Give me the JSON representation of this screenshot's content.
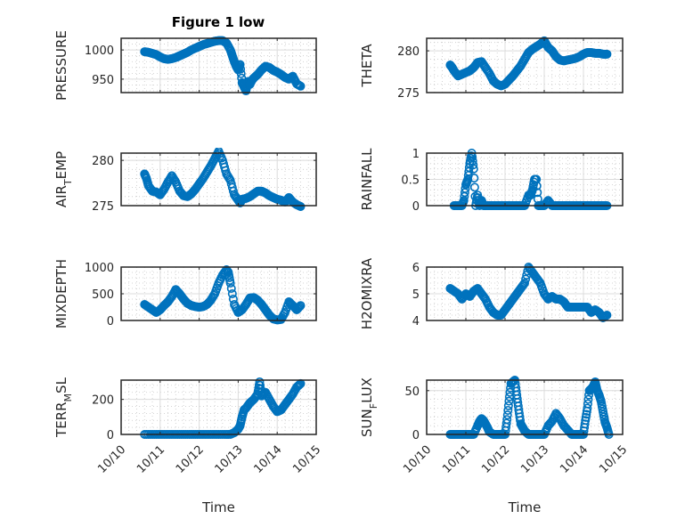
{
  "figure": {
    "title": "Figure 1 low"
  },
  "colors": {
    "marker": "#0072BD",
    "axis": "#262626",
    "grid_major": "#dcdcdc",
    "grid_minor": "#c8c8c8",
    "background": "#ffffff"
  },
  "chart_data": [
    {
      "type": "scatter",
      "name": "pressure",
      "title": "Figure 1 low",
      "xlabel": "",
      "ylabel": "PRESSURE",
      "xlim": [
        0,
        5
      ],
      "xticks": [
        0,
        1,
        2,
        3,
        4,
        5
      ],
      "xtick_labels": [],
      "ylim": [
        927,
        1020
      ],
      "yticks": [
        950,
        1000
      ],
      "ytick_labels": [
        "950",
        "1000"
      ],
      "grid": true,
      "x": [
        0.6,
        0.7,
        0.8,
        0.9,
        1.0,
        1.1,
        1.2,
        1.3,
        1.4,
        1.5,
        1.6,
        1.7,
        1.8,
        1.9,
        2.0,
        2.1,
        2.2,
        2.3,
        2.4,
        2.5,
        2.6,
        2.7,
        2.8,
        2.85,
        2.9,
        2.95,
        3.0,
        3.05,
        3.1,
        3.15,
        3.2,
        3.25,
        3.3,
        3.35,
        3.4,
        3.5,
        3.6,
        3.7,
        3.8,
        3.9,
        4.0,
        4.1,
        4.2,
        4.3,
        4.4,
        4.5,
        4.6
      ],
      "y": [
        997,
        996,
        994,
        992,
        988,
        985,
        984,
        985,
        987,
        990,
        993,
        996,
        1000,
        1003,
        1006,
        1009,
        1011,
        1013,
        1015,
        1016,
        1016,
        1012,
        1000,
        990,
        980,
        972,
        966,
        975,
        944,
        937,
        930,
        946,
        941,
        948,
        952,
        958,
        966,
        972,
        970,
        965,
        962,
        958,
        953,
        950,
        955,
        942,
        938
      ]
    },
    {
      "type": "scatter",
      "name": "theta",
      "xlabel": "",
      "ylabel": "THETA",
      "xlim": [
        0,
        5
      ],
      "xticks": [
        0,
        1,
        2,
        3,
        4,
        5
      ],
      "xtick_labels": [],
      "ylim": [
        275,
        281.5
      ],
      "yticks": [
        275,
        280
      ],
      "ytick_labels": [
        "275",
        "280"
      ],
      "grid": true,
      "x": [
        0.6,
        0.65,
        0.7,
        0.8,
        0.9,
        1.0,
        1.1,
        1.2,
        1.3,
        1.4,
        1.5,
        1.6,
        1.7,
        1.8,
        1.9,
        2.0,
        2.1,
        2.2,
        2.3,
        2.4,
        2.5,
        2.6,
        2.7,
        2.8,
        2.9,
        3.0,
        3.1,
        3.2,
        3.3,
        3.4,
        3.5,
        3.6,
        3.7,
        3.8,
        3.9,
        4.0,
        4.1,
        4.2,
        4.3,
        4.4,
        4.5,
        4.6
      ],
      "y": [
        278.3,
        278.0,
        277.6,
        277.0,
        277.2,
        277.4,
        277.6,
        278.0,
        278.6,
        278.7,
        278.0,
        277.3,
        276.4,
        276.0,
        275.8,
        276.0,
        276.5,
        277.0,
        277.6,
        278.2,
        279.0,
        279.8,
        280.2,
        280.5,
        280.8,
        281.2,
        280.4,
        280.0,
        279.3,
        278.9,
        278.8,
        278.9,
        279.0,
        279.1,
        279.3,
        279.6,
        279.8,
        279.8,
        279.7,
        279.7,
        279.6,
        279.6
      ]
    },
    {
      "type": "scatter",
      "name": "air_temp",
      "xlabel": "",
      "ylabel": "AIR_TEMP",
      "ylabel_display": [
        "AIR",
        "T",
        "EMP"
      ],
      "xlim": [
        0,
        5
      ],
      "xticks": [
        0,
        1,
        2,
        3,
        4,
        5
      ],
      "xtick_labels": [],
      "ylim": [
        275,
        280.8
      ],
      "yticks": [
        275,
        280
      ],
      "ytick_labels": [
        "275",
        "280"
      ],
      "grid": true,
      "x": [
        0.6,
        0.65,
        0.7,
        0.8,
        0.9,
        1.0,
        1.1,
        1.2,
        1.3,
        1.4,
        1.5,
        1.6,
        1.7,
        1.8,
        1.9,
        2.0,
        2.1,
        2.2,
        2.3,
        2.4,
        2.5,
        2.6,
        2.7,
        2.8,
        2.9,
        3.0,
        3.05,
        3.1,
        3.2,
        3.3,
        3.4,
        3.5,
        3.6,
        3.7,
        3.8,
        3.9,
        4.0,
        4.1,
        4.2,
        4.3,
        4.4,
        4.5,
        4.6
      ],
      "y": [
        278.5,
        278.0,
        277.2,
        276.6,
        276.5,
        276.2,
        276.8,
        277.6,
        278.3,
        277.6,
        276.6,
        276.1,
        276.0,
        276.3,
        276.8,
        277.4,
        278.0,
        278.7,
        279.4,
        280.2,
        281.0,
        280.0,
        278.5,
        277.8,
        276.2,
        275.6,
        275.3,
        275.7,
        275.8,
        276.0,
        276.3,
        276.6,
        276.6,
        276.4,
        276.1,
        275.9,
        275.7,
        275.6,
        275.4,
        275.9,
        275.4,
        275.1,
        274.9
      ]
    },
    {
      "type": "scatter",
      "name": "rainfall",
      "xlabel": "",
      "ylabel": "RAINFALL",
      "xlim": [
        0,
        5
      ],
      "xticks": [
        0,
        1,
        2,
        3,
        4,
        5
      ],
      "xtick_labels": [],
      "ylim": [
        0,
        1
      ],
      "yticks": [
        0,
        0.5,
        1
      ],
      "ytick_labels": [
        "0",
        "0.5",
        "1"
      ],
      "grid": true,
      "x": [
        0.7,
        0.8,
        0.9,
        0.95,
        1.0,
        1.05,
        1.1,
        1.15,
        1.2,
        1.25,
        1.3,
        1.35,
        1.4,
        1.45,
        1.5,
        1.6,
        1.7,
        1.8,
        1.9,
        2.0,
        2.1,
        2.2,
        2.3,
        2.4,
        2.5,
        2.6,
        2.65,
        2.7,
        2.75,
        2.8,
        2.85,
        2.9,
        3.0,
        3.1,
        3.2,
        3.3,
        3.4,
        3.5,
        3.6,
        3.7,
        3.8,
        3.9,
        4.0,
        4.1,
        4.2,
        4.3,
        4.4,
        4.5,
        4.6
      ],
      "y": [
        0,
        0,
        0,
        0.1,
        0.4,
        0.5,
        0.8,
        1.0,
        0.7,
        0.0,
        0.2,
        0.0,
        0.1,
        0,
        0,
        0,
        0,
        0,
        0,
        0,
        0,
        0,
        0,
        0,
        0,
        0.2,
        0.2,
        0.3,
        0.5,
        0.5,
        0,
        0,
        0,
        0.1,
        0,
        0,
        0,
        0,
        0,
        0,
        0,
        0,
        0,
        0,
        0,
        0,
        0,
        0,
        0
      ]
    },
    {
      "type": "scatter",
      "name": "mixdepth",
      "xlabel": "",
      "ylabel": "MIXDEPTH",
      "xlim": [
        0,
        5
      ],
      "xticks": [
        0,
        1,
        2,
        3,
        4,
        5
      ],
      "xtick_labels": [],
      "ylim": [
        0,
        1000
      ],
      "yticks": [
        0,
        500,
        1000
      ],
      "ytick_labels": [
        "0",
        "500",
        "1000"
      ],
      "grid": true,
      "x": [
        0.6,
        0.7,
        0.8,
        0.9,
        1.0,
        1.1,
        1.2,
        1.3,
        1.4,
        1.5,
        1.6,
        1.7,
        1.8,
        1.9,
        2.0,
        2.1,
        2.2,
        2.3,
        2.4,
        2.5,
        2.6,
        2.7,
        2.75,
        2.8,
        2.9,
        3.0,
        3.1,
        3.2,
        3.3,
        3.4,
        3.5,
        3.6,
        3.7,
        3.8,
        3.9,
        4.0,
        4.1,
        4.2,
        4.3,
        4.4,
        4.5,
        4.6
      ],
      "y": [
        300,
        250,
        200,
        150,
        200,
        280,
        350,
        450,
        580,
        500,
        400,
        320,
        280,
        260,
        250,
        260,
        300,
        380,
        500,
        700,
        850,
        950,
        900,
        700,
        300,
        150,
        200,
        300,
        420,
        430,
        380,
        300,
        200,
        100,
        30,
        10,
        20,
        150,
        350,
        280,
        200,
        280
      ]
    },
    {
      "type": "scatter",
      "name": "h2omixra",
      "xlabel": "",
      "ylabel": "H2OMIXRA",
      "xlim": [
        0,
        5
      ],
      "xticks": [
        0,
        1,
        2,
        3,
        4,
        5
      ],
      "xtick_labels": [],
      "ylim": [
        4,
        6
      ],
      "yticks": [
        4,
        5,
        6
      ],
      "ytick_labels": [
        "4",
        "5",
        "6"
      ],
      "grid": true,
      "x": [
        0.6,
        0.7,
        0.8,
        0.9,
        1.0,
        1.1,
        1.2,
        1.3,
        1.4,
        1.5,
        1.6,
        1.7,
        1.8,
        1.9,
        2.0,
        2.1,
        2.2,
        2.3,
        2.4,
        2.5,
        2.6,
        2.7,
        2.8,
        2.9,
        3.0,
        3.1,
        3.2,
        3.3,
        3.4,
        3.5,
        3.6,
        3.7,
        3.8,
        3.9,
        4.0,
        4.1,
        4.2,
        4.3,
        4.4,
        4.5,
        4.6
      ],
      "y": [
        5.2,
        5.1,
        5.0,
        4.8,
        5.0,
        4.9,
        5.1,
        5.2,
        5.0,
        4.8,
        4.5,
        4.3,
        4.2,
        4.2,
        4.4,
        4.6,
        4.8,
        5.0,
        5.2,
        5.4,
        6.0,
        5.8,
        5.6,
        5.4,
        5.0,
        4.8,
        4.9,
        4.8,
        4.8,
        4.7,
        4.5,
        4.5,
        4.5,
        4.5,
        4.5,
        4.5,
        4.3,
        4.4,
        4.3,
        4.1,
        4.2
      ]
    },
    {
      "type": "scatter",
      "name": "terr_msl",
      "xlabel": "Time",
      "ylabel": "TERR_MSL",
      "ylabel_display": [
        "TERR",
        "M",
        "SL"
      ],
      "xlim": [
        0,
        5
      ],
      "xticks": [
        0,
        1,
        2,
        3,
        4,
        5
      ],
      "xtick_labels": [
        "10/10",
        "10/11",
        "10/12",
        "10/13",
        "10/14",
        "10/15"
      ],
      "ylim": [
        0,
        310
      ],
      "yticks": [
        0,
        200
      ],
      "ytick_labels": [
        "0",
        "200"
      ],
      "grid": true,
      "x": [
        0.6,
        0.8,
        1.0,
        1.2,
        1.4,
        1.6,
        1.8,
        2.0,
        2.2,
        2.4,
        2.6,
        2.8,
        2.9,
        3.0,
        3.05,
        3.1,
        3.15,
        3.2,
        3.3,
        3.4,
        3.5,
        3.55,
        3.6,
        3.7,
        3.8,
        3.9,
        4.0,
        4.1,
        4.2,
        4.3,
        4.4,
        4.5,
        4.6
      ],
      "y": [
        0,
        0,
        0,
        0,
        0,
        0,
        0,
        0,
        0,
        0,
        0,
        0,
        10,
        30,
        50,
        100,
        140,
        150,
        180,
        200,
        230,
        300,
        220,
        240,
        200,
        160,
        130,
        140,
        170,
        200,
        230,
        270,
        290
      ]
    },
    {
      "type": "scatter",
      "name": "sun_flux",
      "xlabel": "Time",
      "ylabel": "SUN_FLUX",
      "ylabel_display": [
        "SUN",
        "F",
        "LUX"
      ],
      "xlim": [
        0,
        5
      ],
      "xticks": [
        0,
        1,
        2,
        3,
        4,
        5
      ],
      "xtick_labels": [
        "10/10",
        "10/11",
        "10/12",
        "10/13",
        "10/14",
        "10/15"
      ],
      "ylim": [
        0,
        62
      ],
      "yticks": [
        0,
        50
      ],
      "ytick_labels": [
        "0",
        "50"
      ],
      "grid": true,
      "x": [
        0.6,
        0.7,
        0.8,
        0.9,
        1.0,
        1.1,
        1.2,
        1.3,
        1.35,
        1.4,
        1.45,
        1.5,
        1.55,
        1.6,
        1.7,
        1.8,
        1.9,
        2.0,
        2.05,
        2.1,
        2.15,
        2.2,
        2.25,
        2.3,
        2.35,
        2.4,
        2.45,
        2.5,
        2.6,
        2.7,
        2.8,
        2.9,
        3.0,
        3.1,
        3.2,
        3.3,
        3.4,
        3.5,
        3.6,
        3.7,
        3.8,
        3.9,
        4.0,
        4.05,
        4.1,
        4.15,
        4.2,
        4.25,
        4.3,
        4.35,
        4.4,
        4.45,
        4.5,
        4.55,
        4.6,
        4.65
      ],
      "y": [
        0,
        0,
        0,
        0,
        0,
        0,
        0,
        10,
        15,
        18,
        16,
        12,
        8,
        3,
        0,
        0,
        0,
        0,
        17,
        38,
        58,
        60,
        62,
        45,
        28,
        12,
        8,
        4,
        0,
        0,
        0,
        0,
        0,
        10,
        15,
        24,
        18,
        10,
        5,
        0,
        0,
        0,
        0,
        16,
        30,
        50,
        52,
        55,
        60,
        50,
        45,
        38,
        26,
        14,
        8,
        0
      ]
    }
  ]
}
